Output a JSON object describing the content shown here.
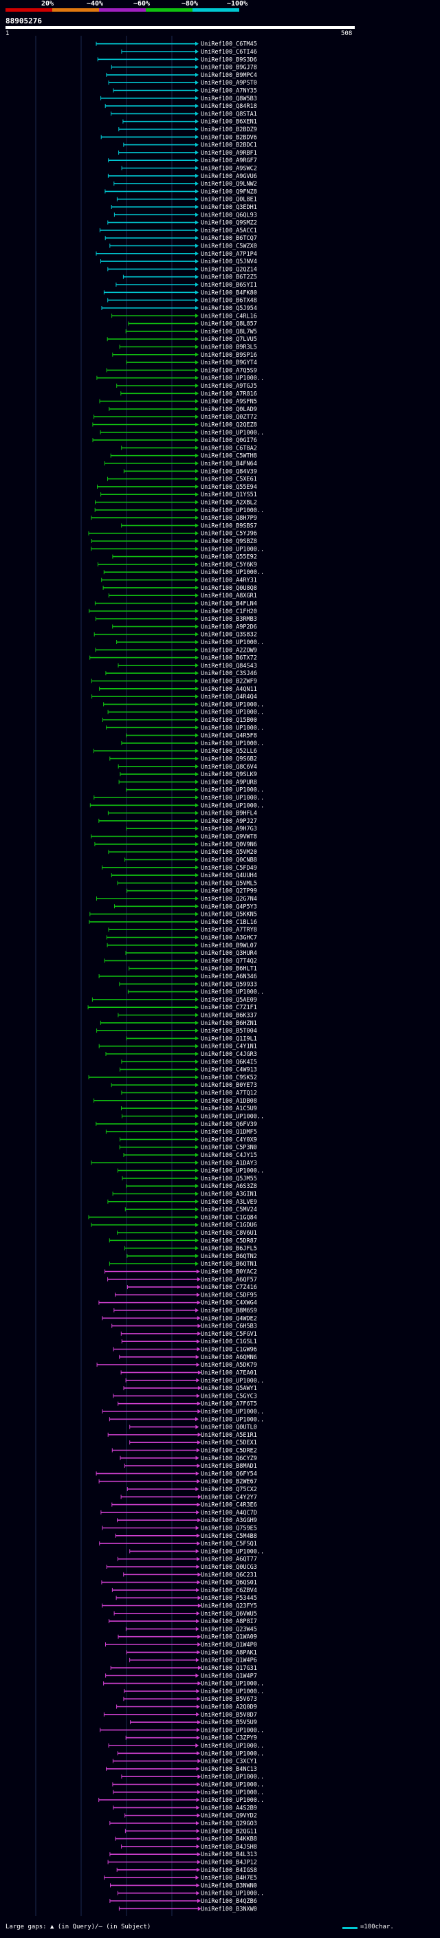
{
  "header": {
    "percent_labels": [
      "20%",
      "~40%",
      "~60%",
      "~80%",
      "~100%"
    ],
    "color_bands": [
      "#d00000",
      "#e07810",
      "#a020c0",
      "#10c010",
      "#00c8d2"
    ],
    "query_id": "88905276",
    "query_start": "1",
    "query_end": "508"
  },
  "footer": {
    "gaps_text": "Large gaps: ▲ (in Query)/– (in Subject)",
    "scale_text": "=100char."
  },
  "hits": {
    "cyan": [
      "UniRef100_C6TM45",
      "UniRef100_C6TI46",
      "UniRef100_B9S3D6",
      "UniRef100_B9GJ78",
      "UniRef100_B9MPC4",
      "UniRef100_A9PST0",
      "UniRef100_A7NY35",
      "UniRef100_Q8W5B3",
      "UniRef100_Q84R18",
      "UniRef100_Q8STA1",
      "UniRef100_B6XEN1",
      "UniRef100_B2BDZ9",
      "UniRef100_B2BDV6",
      "UniRef100_B2BDC1",
      "UniRef100_A9RBF1",
      "UniRef100_A9RGF7",
      "UniRef100_A9SWC2",
      "UniRef100_A9GVU6",
      "UniRef100_Q9LNW2",
      "UniRef100_Q9FNZ8",
      "UniRef100_Q0L8E1",
      "UniRef100_Q3EDH1",
      "UniRef100_Q6QL93",
      "UniRef100_Q9SMZ2",
      "UniRef100_A5ACC1",
      "UniRef100_B6TCQ7",
      "UniRef100_C5WZX0",
      "UniRef100_A7P1P4",
      "UniRef100_Q5JNV4",
      "UniRef100_Q2QZ14",
      "UniRef100_B6T2Z5",
      "UniRef100_B6SYI1",
      "UniRef100_B4FK80",
      "UniRef100_B6TX48",
      "UniRef100_Q5J954"
    ],
    "green": [
      "UniRef100_C4RL16",
      "UniRef100_Q8L857",
      "UniRef100_Q8L7W5",
      "UniRef100_Q7LVU5",
      "UniRef100_B9R3L5",
      "UniRef100_B9SP16",
      "UniRef100_B9GYT4",
      "UniRef100_A7Q5S9",
      "UniRef100_UP1000..",
      "UniRef100_A9TGJ5",
      "UniRef100_A7R816",
      "UniRef100_A9SFN5",
      "UniRef100_Q0LAD9",
      "UniRef100_Q0ZT72",
      "UniRef100_Q2QEZ8",
      "UniRef100_UP1000..",
      "UniRef100_Q0GI76",
      "UniRef100_C6T8A2",
      "UniRef100_C5WTH8",
      "UniRef100_B4FN64",
      "UniRef100_Q84V39",
      "UniRef100_C5XE61",
      "UniRef100_Q55E94",
      "UniRef100_Q1YS51",
      "UniRef100_A2XBL2",
      "UniRef100_UP1000..",
      "UniRef100_Q8H7P9",
      "UniRef100_B9SBS7",
      "UniRef100_C5YJ96",
      "UniRef100_Q9SBZ8",
      "UniRef100_UP1000..",
      "UniRef100_Q55E92",
      "UniRef100_C5Y6K9",
      "UniRef100_UP1000..",
      "UniRef100_A4RY31",
      "UniRef100_Q0U8Q8",
      "UniRef100_A8XGR1",
      "UniRef100_B4FLN4",
      "UniRef100_C1FH20",
      "UniRef100_B3RMB3",
      "UniRef100_A9P2D6",
      "UniRef100_Q3S832",
      "UniRef100_UP1000..",
      "UniRef100_A2ZOW9",
      "UniRef100_B6TX72",
      "UniRef100_Q84S43",
      "UniRef100_C3SJ46",
      "UniRef100_B2ZWF9",
      "UniRef100_A4QN11",
      "UniRef100_Q4R4Q4",
      "UniRef100_UP1000..",
      "UniRef100_UP1000..",
      "UniRef100_Q15B00",
      "UniRef100_UP1000..",
      "UniRef100_Q4R5F8",
      "UniRef100_UP1000..",
      "UniRef100_Q52LL6",
      "UniRef100_Q9S6B2",
      "UniRef100_Q8C6V4",
      "UniRef100_Q9SLK9",
      "UniRef100_A9PUR8",
      "UniRef100_UP1000..",
      "UniRef100_UP1000..",
      "UniRef100_UP1000..",
      "UniRef100_B9HFL4",
      "UniRef100_A9PJ27",
      "UniRef100_A9H7G3",
      "UniRef100_Q9VWT8",
      "UniRef100_Q0V9N6",
      "UniRef100_Q5VM20",
      "UniRef100_Q0CNB8",
      "UniRef100_C5FD49",
      "UniRef100_Q4UUH4",
      "UniRef100_Q5VML5",
      "UniRef100_Q2TP99",
      "UniRef100_Q2G7N4",
      "UniRef100_Q4P5Y3",
      "UniRef100_Q5KKN5",
      "UniRef100_C1BL16",
      "UniRef100_A7TRY8",
      "UniRef100_A3GHC7",
      "UniRef100_B9WL07",
      "UniRef100_Q3HUR4",
      "UniRef100_Q7T4Q2",
      "UniRef100_B6HLT1",
      "UniRef100_A6N346",
      "UniRef100_Q59933",
      "UniRef100_UP1000..",
      "UniRef100_Q5AE09",
      "UniRef100_C7Z1F1",
      "UniRef100_B6K337",
      "UniRef100_B6HZN1",
      "UniRef100_B5T004",
      "UniRef100_Q1I9L1",
      "UniRef100_C4Y1N1",
      "UniRef100_C4JGR3",
      "UniRef100_Q6K4I5",
      "UniRef100_C4W913",
      "UniRef100_C9SK52",
      "UniRef100_B0YE73",
      "UniRef100_A7TQ12",
      "UniRef100_A1DB08",
      "UniRef100_A1C5U9",
      "UniRef100_UP1000..",
      "UniRef100_Q6FV39",
      "UniRef100_Q1DMF5",
      "UniRef100_C4Y0X9",
      "UniRef100_C5P3N0",
      "UniRef100_C4JY15",
      "UniRef100_A1DAY3",
      "UniRef100_UP1000..",
      "UniRef100_Q5JM55",
      "UniRef100_A6S3Z8",
      "UniRef100_A3GIN1",
      "UniRef100_A3LVE9",
      "UniRef100_C5MV24",
      "UniRef100_C1GQ84",
      "UniRef100_C1GDU6",
      "UniRef100_C8V6U1",
      "UniRef100_C5DR87",
      "UniRef100_B6JFL5",
      "UniRef100_B6QTN2",
      "UniRef100_B6QTN1"
    ],
    "magenta": [
      "UniRef100_B0YAC2",
      "UniRef100_A6QF57",
      "UniRef100_C7Z416",
      "UniRef100_C5DF95",
      "UniRef100_C4XWG4",
      "UniRef100_B8M6S9",
      "UniRef100_Q4WDE2",
      "UniRef100_C6H5B3",
      "UniRef100_C5FGV1",
      "UniRef100_C1GSL1",
      "UniRef100_C1GW96",
      "UniRef100_A6QMN6",
      "UniRef100_A5DK79",
      "UniRef100_A7EA01",
      "UniRef100_UP1000..",
      "UniRef100_Q5AWY1",
      "UniRef100_C5GYC3",
      "UniRef100_A7F6T5",
      "UniRef100_UP1000..",
      "UniRef100_UP1000..",
      "UniRef100_Q0UTL0",
      "UniRef100_A5E1R1",
      "UniRef100_C5DEX1",
      "UniRef100_C5DRE2",
      "UniRef100_Q6CYZ9",
      "UniRef100_B8MAD1",
      "UniRef100_Q6FY54",
      "UniRef100_B2WE67",
      "UniRef100_Q75CX2",
      "UniRef100_C4Y2Y7",
      "UniRef100_C4R3E6",
      "UniRef100_A4QC7D",
      "UniRef100_A3GGH9",
      "UniRef100_Q759E5",
      "UniRef100_C5M4B8",
      "UniRef100_C5FSQ1",
      "UniRef100_UP1000..",
      "UniRef100_A6QT77",
      "UniRef100_Q0UCG3",
      "UniRef100_Q6C231",
      "UniRef100_Q6QS01",
      "UniRef100_C6ZBV4",
      "UniRef100_P53445",
      "UniRef100_Q23FY5",
      "UniRef100_Q6VWU5",
      "UniRef100_A8P8I7",
      "UniRef100_Q23W45",
      "UniRef100_Q1WA09",
      "UniRef100_Q1W4P0",
      "UniRef100_A8PAK1",
      "UniRef100_Q1W4P6",
      "UniRef100_Q17G31",
      "UniRef100_Q1W4P7",
      "UniRef100_UP1000..",
      "UniRef100_UP1000..",
      "UniRef100_B5V673",
      "UniRef100_A2Q0D9",
      "UniRef100_B5V8D7",
      "UniRef100_B5V5U9",
      "UniRef100_UP1000..",
      "UniRef100_C3ZPY9",
      "UniRef100_UP1000..",
      "UniRef100_UP1000..",
      "UniRef100_C3XCY1",
      "UniRef100_B4NC13",
      "UniRef100_UP1000..",
      "UniRef100_UP1000..",
      "UniRef100_UP1000..",
      "UniRef100_UP1000..",
      "UniRef100_A4S2B9",
      "UniRef100_Q9VYD2",
      "UniRef100_Q29GO3",
      "UniRef100_B2QG11",
      "UniRef100_B4KKB8",
      "UniRef100_B4JSH8",
      "UniRef100_B4L313",
      "UniRef100_B4JP12",
      "UniRef100_B4IGS8",
      "UniRef100_B4H7E5",
      "UniRef100_B3NWN0",
      "UniRef100_UP1000..",
      "UniRef100_B4QZB6",
      "UniRef100_B3NXW0"
    ]
  }
}
